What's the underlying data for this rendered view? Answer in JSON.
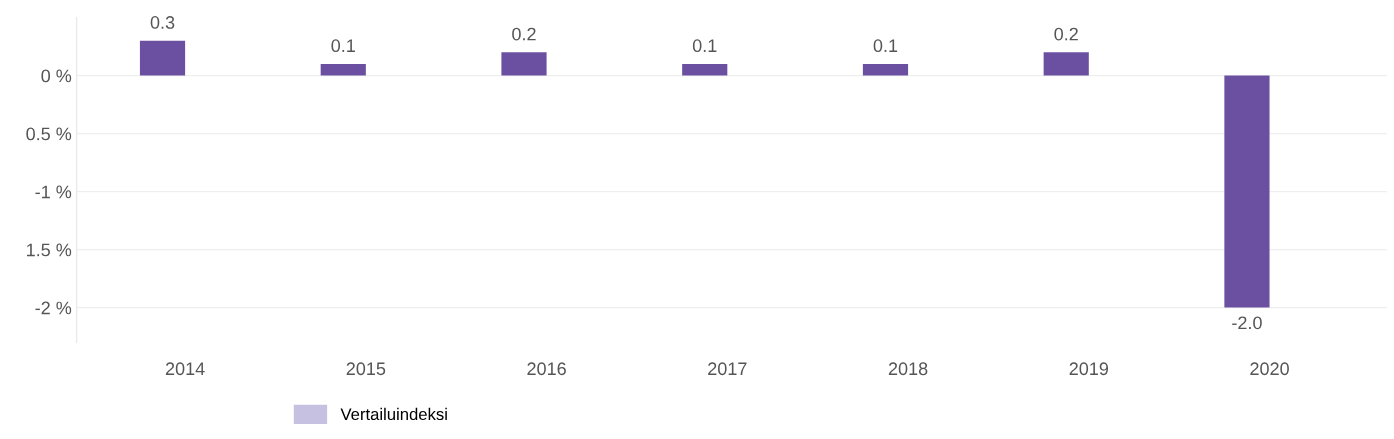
{
  "chart_data": {
    "type": "bar",
    "categories": [
      "2014",
      "2015",
      "2016",
      "2017",
      "2018",
      "2019",
      "2020"
    ],
    "series": [
      {
        "color": "#6b50a1",
        "values": [
          0.3,
          0.1,
          0.2,
          0.1,
          0.1,
          0.2,
          -2.0
        ],
        "value_labels": [
          "0.3",
          "0.1",
          "0.2",
          "0.1",
          "0.1",
          "0.2",
          "-2.0"
        ]
      },
      {
        "name": "Vertailuindeksi",
        "color": "#c6c1e1",
        "values": [
          null,
          null,
          null,
          null,
          null,
          null,
          null
        ]
      }
    ],
    "ylim": [
      -2.3,
      0.5
    ],
    "yticks": [
      {
        "value": 0,
        "label": "0 %"
      },
      {
        "value": -0.5,
        "label": "0.5 %"
      },
      {
        "value": -1,
        "label": "-1 %"
      },
      {
        "value": -1.5,
        "label": "1.5 %"
      },
      {
        "value": -2,
        "label": "-2 %"
      }
    ],
    "grid": "y",
    "legend": "bottom left"
  }
}
